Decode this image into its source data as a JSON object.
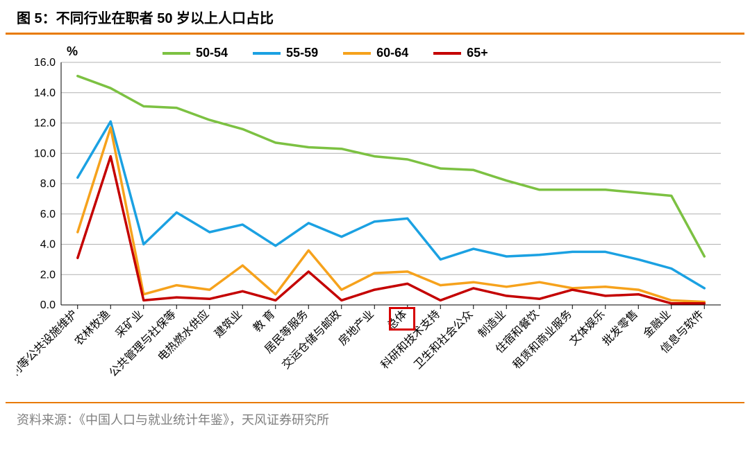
{
  "title": "图 5：不同行业在职者 50 岁以上人口占比",
  "source": "资料来源：《中国人口与就业统计年鉴》，天风证券研究所",
  "accent_color": "#e87a00",
  "text_color": "#000000",
  "grid_color": "#b0b0b0",
  "axis_color": "#000000",
  "background": "#ffffff",
  "y_unit_label": "%",
  "chart": {
    "type": "line",
    "ylim": [
      0,
      16
    ],
    "ytick_step": 2,
    "line_width": 3.5,
    "categories": [
      "水利等公共设施维护",
      "农林牧渔",
      "采矿业",
      "公共管理与社保等",
      "电热燃水供应",
      "建筑业",
      "教 育",
      "居民等服务",
      "交运仓储与邮政",
      "房地产业",
      "总体",
      "科研和技术支持",
      "卫生和社会公众",
      "制造业",
      "住宿和餐饮",
      "租赁和商业服务",
      "文体娱乐",
      "批发零售",
      "金融业",
      "信息与软件"
    ],
    "highlight_category_index": 10,
    "series": [
      {
        "name": "50-54",
        "color": "#7cc142",
        "values": [
          15.1,
          14.3,
          13.1,
          13.0,
          12.2,
          11.6,
          10.7,
          10.4,
          10.3,
          9.8,
          9.6,
          9.0,
          8.9,
          8.2,
          7.6,
          7.6,
          7.6,
          7.4,
          7.2,
          3.2
        ]
      },
      {
        "name": "55-59",
        "color": "#1ba1e2",
        "values": [
          8.4,
          12.1,
          4.0,
          6.1,
          4.8,
          5.3,
          3.9,
          5.4,
          4.5,
          5.5,
          5.7,
          3.0,
          3.7,
          3.2,
          3.3,
          3.5,
          3.5,
          3.0,
          2.4,
          1.1
        ]
      },
      {
        "name": "60-64",
        "color": "#f6a21c",
        "values": [
          4.8,
          11.7,
          0.7,
          1.3,
          1.0,
          2.6,
          0.7,
          3.6,
          1.0,
          2.1,
          2.2,
          1.3,
          1.5,
          1.2,
          1.5,
          1.1,
          1.2,
          1.0,
          0.3,
          0.2
        ]
      },
      {
        "name": "65+",
        "color": "#c40000",
        "values": [
          3.1,
          9.8,
          0.3,
          0.5,
          0.4,
          0.9,
          0.3,
          2.2,
          0.3,
          1.0,
          1.4,
          0.3,
          1.1,
          0.6,
          0.4,
          1.0,
          0.6,
          0.7,
          0.1,
          0.1
        ]
      }
    ]
  },
  "y_ticks": [
    "0.0",
    "2.0",
    "4.0",
    "6.0",
    "8.0",
    "10.0",
    "12.0",
    "14.0",
    "16.0"
  ]
}
